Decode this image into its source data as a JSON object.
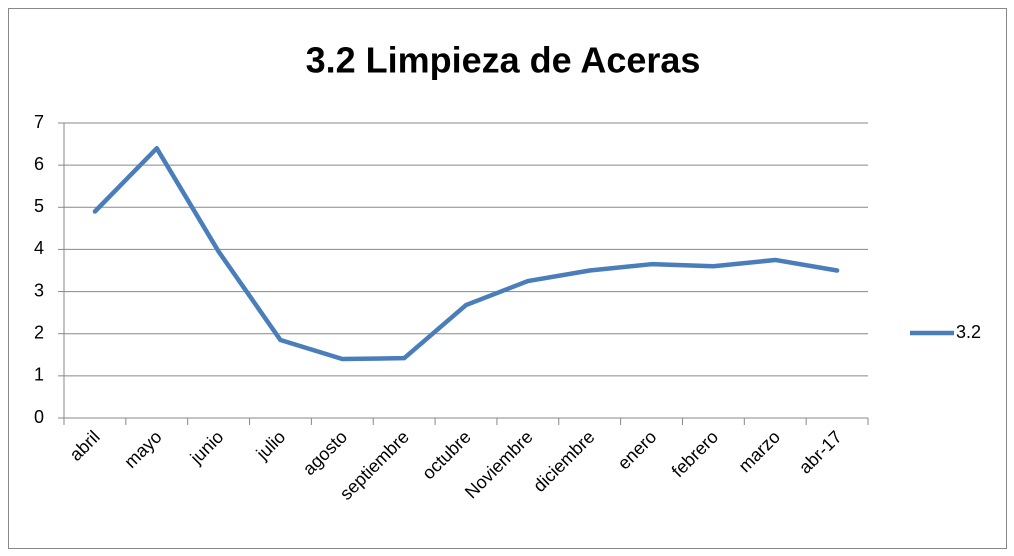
{
  "chart_data": {
    "type": "line",
    "title": "3.2 Limpieza de Aceras",
    "categories": [
      "abril",
      "mayo",
      "junio",
      "julio",
      "agosto",
      "septiembre",
      "octubre",
      "Noviembre",
      "diciembre",
      "enero",
      "febrero",
      "marzo",
      "abr-17"
    ],
    "series": [
      {
        "name": "3.2",
        "color": "#4a7ebb",
        "values": [
          4.9,
          6.4,
          3.95,
          1.85,
          1.4,
          1.42,
          2.68,
          3.25,
          3.5,
          3.65,
          3.6,
          3.75,
          3.5
        ]
      }
    ],
    "ylim": [
      0,
      7
    ],
    "yticks": [
      0,
      1,
      2,
      3,
      4,
      5,
      6,
      7
    ],
    "grid": true,
    "legend": "right"
  }
}
